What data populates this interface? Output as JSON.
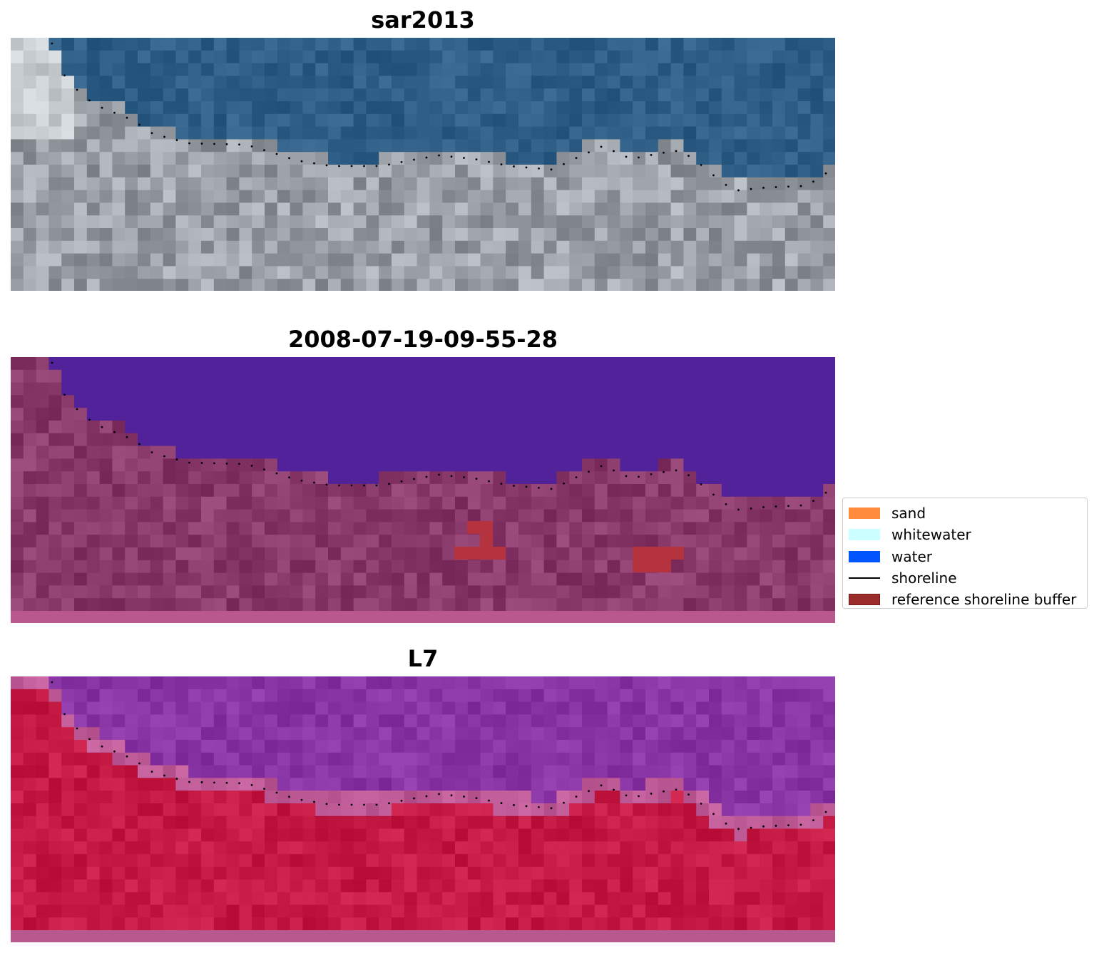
{
  "panels": [
    {
      "title": "sar2013",
      "theme": "rgb"
    },
    {
      "title": "2008-07-19-09-55-28",
      "theme": "classified"
    },
    {
      "title": "L7",
      "theme": "index"
    }
  ],
  "legend": {
    "items": [
      {
        "label": "sand",
        "kind": "patch",
        "color": "#ff8c3c"
      },
      {
        "label": "whitewater",
        "kind": "patch",
        "color": "#ccffff"
      },
      {
        "label": "water",
        "kind": "patch",
        "color": "#0055ff"
      },
      {
        "label": "shoreline",
        "kind": "line",
        "color": "#000000"
      },
      {
        "label": "reference shoreline buffer",
        "kind": "patch",
        "color": "#9b2c2c",
        "edge": "#7a1b1b"
      }
    ]
  },
  "colors": {
    "ocean_rgb": "#2f5f86",
    "land_rgb": "#9aa0a6",
    "water_class": "#52229a",
    "land_class": "#8a3a6a",
    "buffer": "#b5333f",
    "index_high": "#c41a44",
    "index_low": "#8a35a6",
    "shoreline": "#000000"
  }
}
